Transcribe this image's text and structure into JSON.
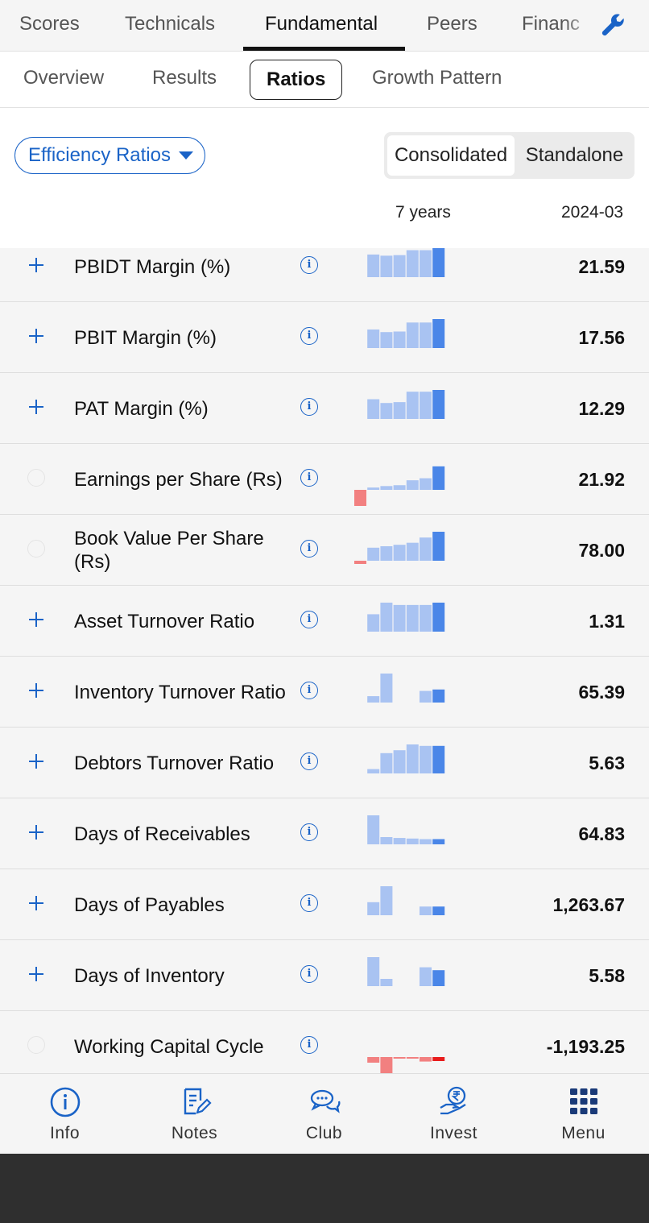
{
  "top_tabs": [
    "Scores",
    "Technicals",
    "Fundamental",
    "Peers",
    "Financ"
  ],
  "sub_tabs": [
    "Overview",
    "Results",
    "Ratios",
    "Growth Pattern"
  ],
  "ratio_selector": "Efficiency Ratios",
  "segment": {
    "consolidated": "Consolidated",
    "standalone": "Standalone"
  },
  "columns": {
    "trend": "7 years",
    "period": "2024-03"
  },
  "rows": [
    {
      "name": "PBIDT Margin (%)",
      "value": "21.59",
      "marker": "plus",
      "trend": [
        null,
        0.78,
        0.74,
        0.76,
        0.93,
        0.93,
        1.0
      ]
    },
    {
      "name": "PBIT Margin (%)",
      "value": "17.56",
      "marker": "plus",
      "trend": [
        null,
        0.64,
        0.55,
        0.57,
        0.88,
        0.88,
        1.0
      ]
    },
    {
      "name": "PAT Margin (%)",
      "value": "12.29",
      "marker": "plus",
      "trend": [
        null,
        0.68,
        0.55,
        0.58,
        0.94,
        0.94,
        1.0
      ]
    },
    {
      "name": "Earnings per Share (Rs)",
      "value": "21.92",
      "marker": "ring",
      "trend": [
        -1.0,
        0.08,
        0.13,
        0.16,
        0.33,
        0.4,
        0.81
      ]
    },
    {
      "name": "Book Value Per Share (Rs)",
      "value": "78.00",
      "marker": "ring",
      "trend": [
        -0.2,
        0.45,
        0.5,
        0.55,
        0.62,
        0.8,
        1.0
      ]
    },
    {
      "name": "Asset Turnover Ratio",
      "value": "1.31",
      "marker": "plus",
      "trend": [
        null,
        0.6,
        1.0,
        0.92,
        0.92,
        0.92,
        1.0
      ]
    },
    {
      "name": "Inventory Turnover Ratio",
      "value": "65.39",
      "marker": "plus",
      "trend": [
        null,
        0.22,
        1.0,
        null,
        null,
        0.4,
        0.45
      ]
    },
    {
      "name": "Debtors Turnover Ratio",
      "value": "5.63",
      "marker": "plus",
      "trend": [
        null,
        0.15,
        0.7,
        0.8,
        1.0,
        0.95,
        0.95
      ]
    },
    {
      "name": "Days of Receivables",
      "value": "64.83",
      "marker": "plus",
      "trend": [
        null,
        1.0,
        0.25,
        0.22,
        0.2,
        0.18,
        0.18
      ]
    },
    {
      "name": "Days of Payables",
      "value": "1,263.67",
      "marker": "plus",
      "trend": [
        null,
        0.45,
        1.0,
        null,
        null,
        0.3,
        0.3
      ]
    },
    {
      "name": "Days of Inventory",
      "value": "5.58",
      "marker": "plus",
      "trend": [
        null,
        1.0,
        0.25,
        null,
        null,
        0.65,
        0.55
      ]
    },
    {
      "name": "Working Capital Cycle",
      "value": "-1,193.25",
      "marker": "ring",
      "trend": [
        null,
        -0.35,
        -1.0,
        -0.03,
        -0.03,
        -0.28,
        -0.25
      ]
    }
  ],
  "bottom_nav": [
    "Info",
    "Notes",
    "Club",
    "Invest",
    "Menu"
  ],
  "colors": {
    "accent": "#1a63c7",
    "bar_light": "#a9c3f2",
    "bar_dark": "#4a86e8",
    "bar_negative": "#f28080",
    "bar_negative_dark": "#e81c1c"
  }
}
